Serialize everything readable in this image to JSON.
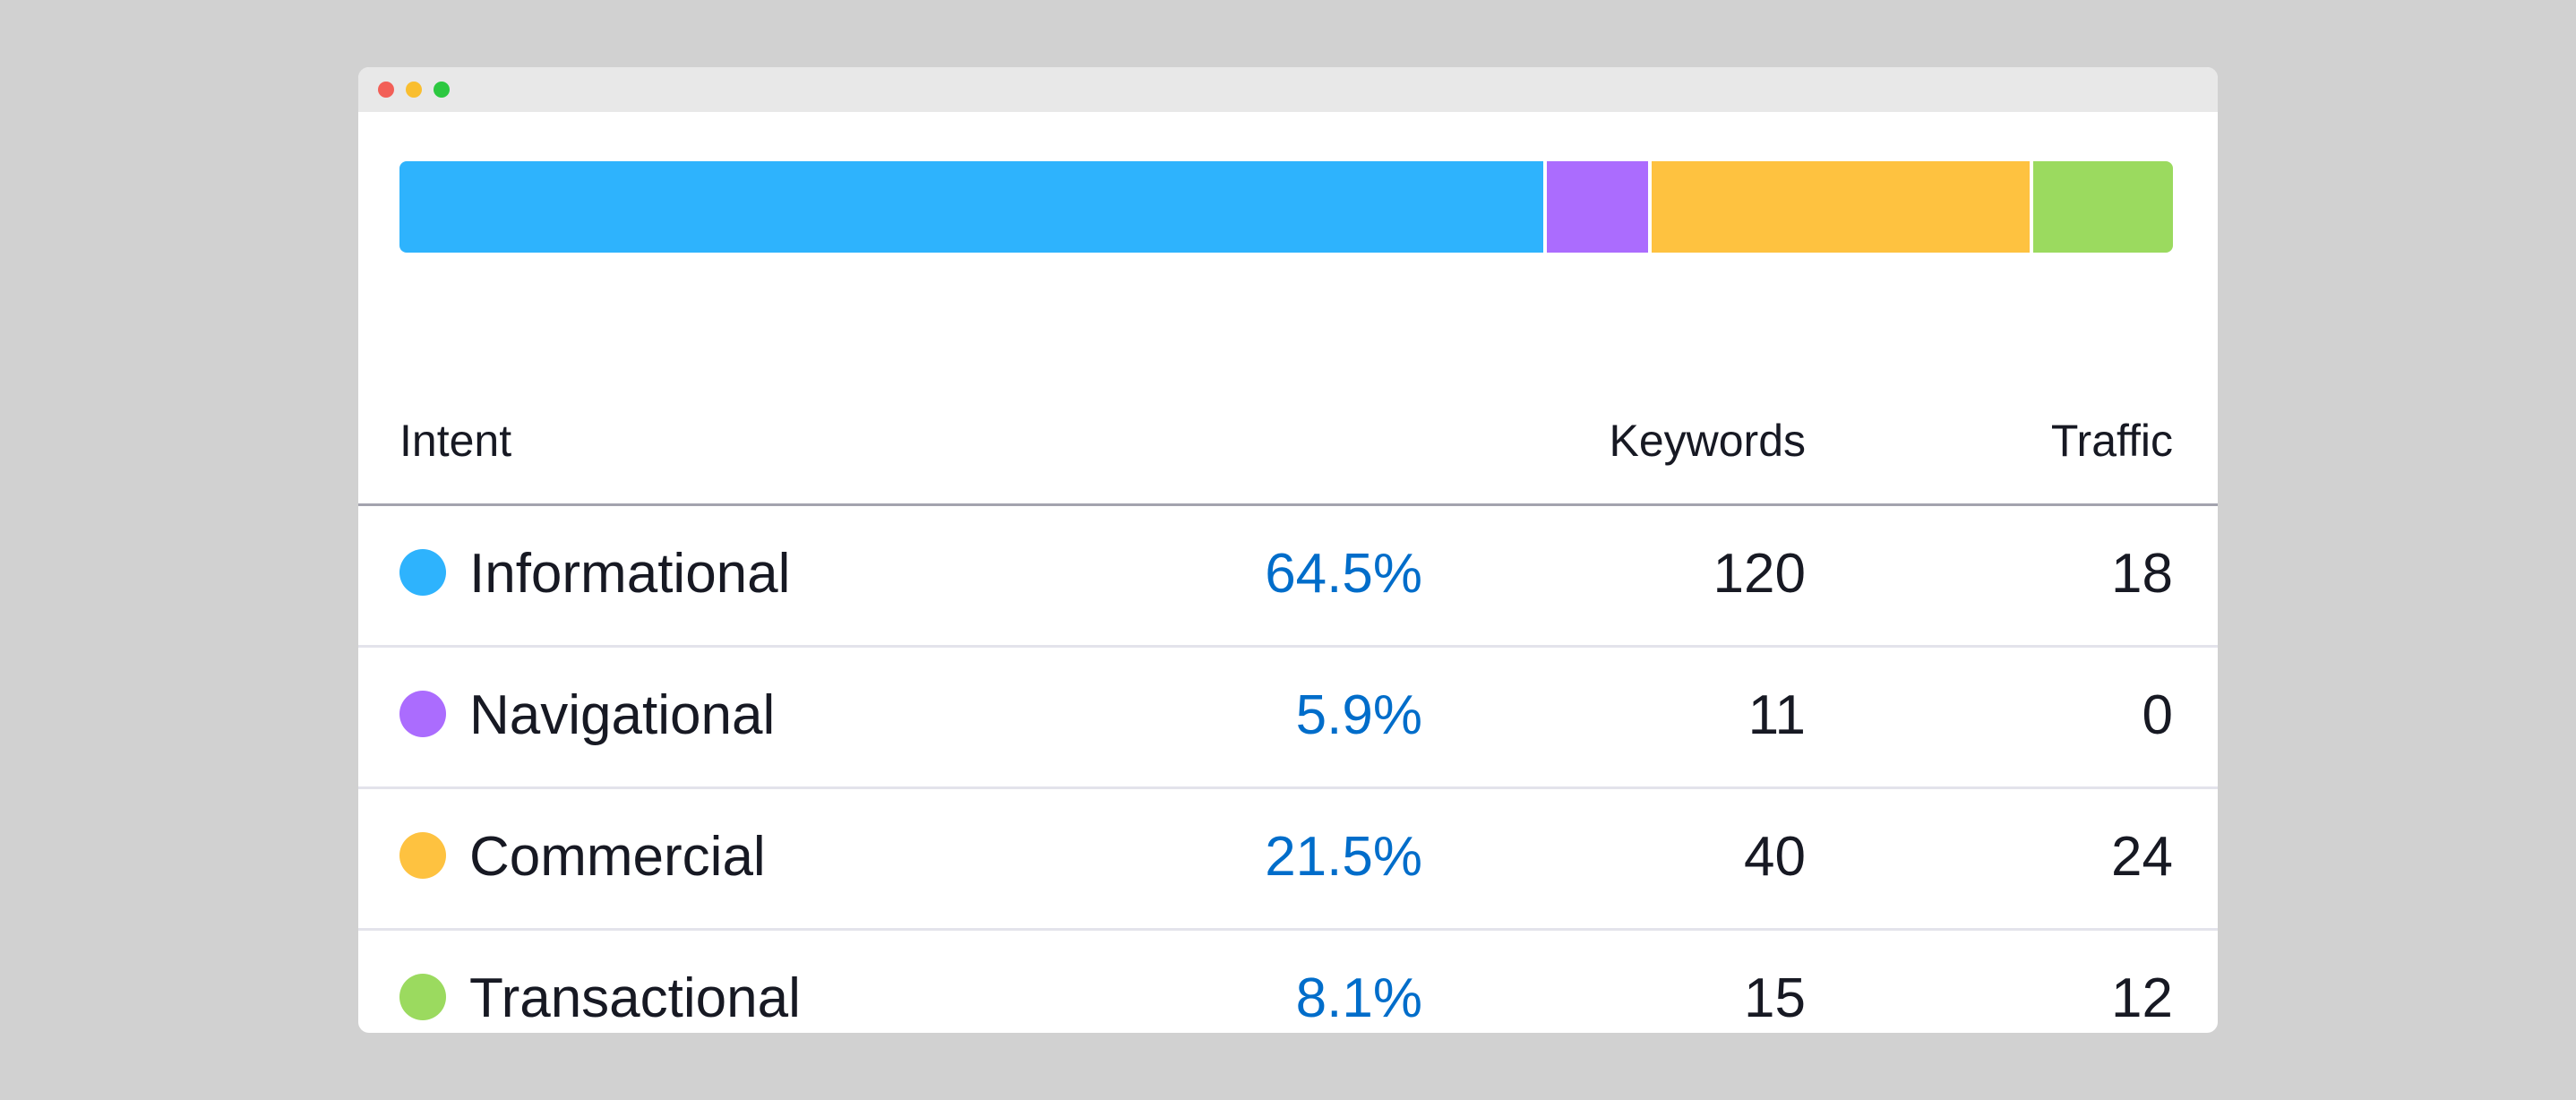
{
  "table": {
    "headers": {
      "intent": "Intent",
      "keywords": "Keywords",
      "traffic": "Traffic"
    },
    "rows": [
      {
        "intent": "Informational",
        "percent": "64.5%",
        "share": 64.5,
        "keywords": "120",
        "traffic": "18",
        "color": "#2eb3fd"
      },
      {
        "intent": "Navigational",
        "percent": "5.9%",
        "share": 5.9,
        "keywords": "11",
        "traffic": "0",
        "color": "#ab6cfe"
      },
      {
        "intent": "Commercial",
        "percent": "21.5%",
        "share": 21.5,
        "keywords": "40",
        "traffic": "24",
        "color": "#fec240"
      },
      {
        "intent": "Transactional",
        "percent": "8.1%",
        "share": 8.1,
        "keywords": "15",
        "traffic": "12",
        "color": "#9bda5f"
      }
    ]
  },
  "colors": {
    "percent_text": "#006dca",
    "background": "#d1d1d1"
  }
}
